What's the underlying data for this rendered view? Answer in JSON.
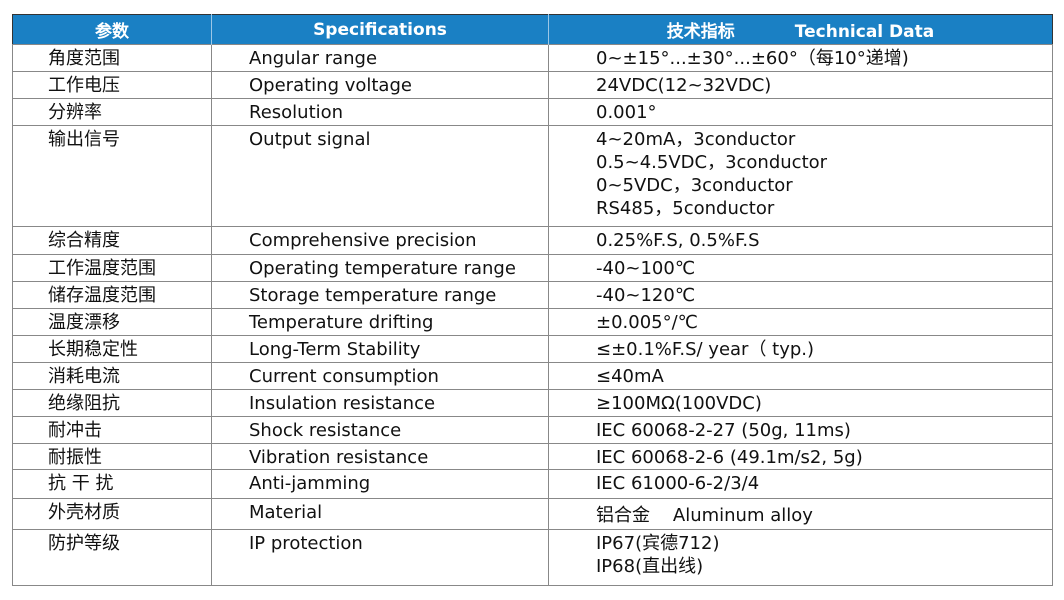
{
  "header": {
    "col1": "参数",
    "col2": "Specifications",
    "col3_cn": "技术指标",
    "col3_en": "Technical Data"
  },
  "header_color": "#1a80c4",
  "rows": [
    {
      "cn": "角度范围",
      "en": "Angular range",
      "value": [
        "0~±15°...±30°...±60°（每10°递增)"
      ]
    },
    {
      "cn": "工作电压",
      "en": "Operating voltage",
      "value": [
        "24VDC(12~32VDC)"
      ]
    },
    {
      "cn": "分辨率",
      "en": "Resolution",
      "value": [
        "0.001°"
      ]
    },
    {
      "cn": "输出信号",
      "en": "Output signal",
      "value": [
        "4~20mA，3conductor",
        "0.5~4.5VDC，3conductor",
        "0~5VDC，3conductor",
        "RS485，5conductor"
      ]
    },
    {
      "cn": "综合精度",
      "en": "Comprehensive precision",
      "value": [
        "0.25%F.S, 0.5%F.S"
      ]
    },
    {
      "cn": "工作温度范围",
      "en": "Operating temperature range",
      "value": [
        "-40~100℃"
      ]
    },
    {
      "cn": "储存温度范围",
      "en": "Storage temperature range",
      "value": [
        "-40~120℃"
      ]
    },
    {
      "cn": "温度漂移",
      "en": "Temperature drifting",
      "value": [
        "±0.005°/℃"
      ]
    },
    {
      "cn": "长期稳定性",
      "en": "Long-Term Stability",
      "value": [
        "≤±0.1%F.S/ year（ typ.)"
      ]
    },
    {
      "cn": "消耗电流",
      "en": "Current consumption",
      "value": [
        "≤40mA"
      ]
    },
    {
      "cn": "绝缘阻抗",
      "en": "Insulation resistance",
      "value": [
        "≥100MΩ(100VDC)"
      ]
    },
    {
      "cn": "耐冲击",
      "en": "Shock resistance",
      "value": [
        "IEC 60068-2-27 (50g, 11ms)"
      ]
    },
    {
      "cn": "耐振性",
      "en": "Vibration resistance",
      "value": [
        "IEC 60068-2-6 (49.1m/s2, 5g)"
      ]
    },
    {
      "cn": "抗 干 扰",
      "en": "Anti-jamming",
      "value": [
        "IEC 61000-6-2/3/4"
      ]
    },
    {
      "cn": "外壳材质",
      "en": "Material",
      "value": [
        "铝合金    Aluminum alloy"
      ]
    },
    {
      "cn": "防护等级",
      "en": "IP protection",
      "value": [
        "IP67(宾德712)",
        "IP68(直出线)"
      ]
    }
  ]
}
